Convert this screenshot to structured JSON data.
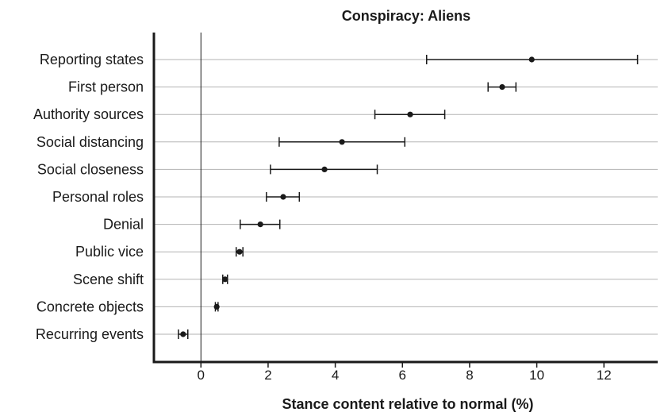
{
  "chart_data": {
    "type": "scatter",
    "title": "Conspiracy: Aliens",
    "xlabel": "Stance content relative to normal (%)",
    "ylabel": "",
    "xlim": [
      -1.4,
      13.6
    ],
    "xticks": [
      0,
      2,
      4,
      6,
      8,
      10,
      12
    ],
    "grid": "horizontal",
    "reference_line_x": 0,
    "error_bars": true,
    "categories": [
      "Reporting states",
      "First person",
      "Authority sources",
      "Social distancing",
      "Social closeness",
      "Personal roles",
      "Denial",
      "Public vice",
      "Scene shift",
      "Concrete objects",
      "Recurring events"
    ],
    "series": [
      {
        "values": [
          9.85,
          8.97,
          6.23,
          4.2,
          3.68,
          2.45,
          1.77,
          1.15,
          0.72,
          0.47,
          -0.53
        ],
        "lower": [
          6.72,
          8.55,
          5.18,
          2.33,
          2.07,
          1.95,
          1.17,
          1.05,
          0.65,
          0.43,
          -0.67
        ],
        "upper": [
          13.0,
          9.38,
          7.26,
          6.07,
          5.25,
          2.93,
          2.35,
          1.25,
          0.79,
          0.51,
          -0.39
        ]
      }
    ]
  }
}
